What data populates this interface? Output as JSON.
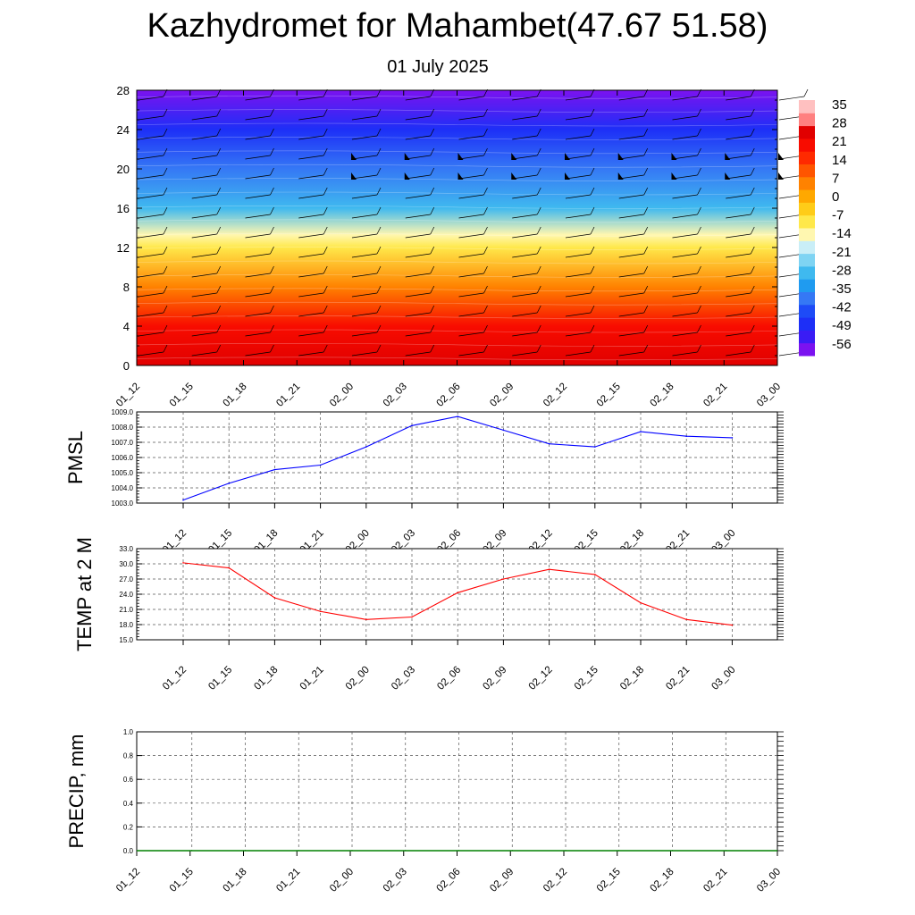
{
  "title": "Kazhydromet for Mahambet(47.67 51.58)",
  "subtitle": "01 July 2025",
  "chart_data": [
    {
      "type": "heatmap",
      "name": "cross-section",
      "x_ticks": [
        "01_12",
        "01_15",
        "01_18",
        "01_21",
        "02_00",
        "02_03",
        "02_06",
        "02_09",
        "02_12",
        "02_15",
        "02_18",
        "02_21",
        "03_00"
      ],
      "y_ticks": [
        0,
        4,
        8,
        12,
        16,
        20,
        24,
        28
      ],
      "ylim": [
        0,
        28
      ],
      "colorbar_labels": [
        "35",
        "28",
        "21",
        "14",
        "7",
        "0",
        "-7",
        "-14",
        "-21",
        "-28",
        "-35",
        "-42",
        "-49",
        "-56"
      ],
      "colorbar_range": [
        -63,
        42
      ],
      "colorscale": [
        "#7b12f0",
        "#3a1cf5",
        "#1d2ff7",
        "#1e4bf7",
        "#3578f5",
        "#1f9bf0",
        "#3fb9ef",
        "#7fd4f3",
        "#c9eef7",
        "#fff7b0",
        "#ffe84a",
        "#ffcc18",
        "#ffa800",
        "#ff8200",
        "#ff5500",
        "#ff2a00",
        "#f80c00",
        "#e10000",
        "#ff8080",
        "#ffc0c0"
      ],
      "temperature_profile": [
        {
          "level": 0,
          "value": 30
        },
        {
          "level": 4,
          "value": 21
        },
        {
          "level": 8,
          "value": 10
        },
        {
          "level": 12,
          "value": -7
        },
        {
          "level": 13.3,
          "value": -12
        },
        {
          "level": 16,
          "value": -28
        },
        {
          "level": 20,
          "value": -42
        },
        {
          "level": 24,
          "value": -52
        },
        {
          "level": 28,
          "value": -60
        }
      ],
      "wind_barb_levels": [
        1,
        3,
        5,
        7,
        9,
        11,
        13,
        15,
        17,
        19,
        21,
        23,
        25,
        27
      ]
    },
    {
      "type": "line",
      "name": "pmsl",
      "ylabel": "PMSL",
      "x": [
        "01_12",
        "01_15",
        "01_18",
        "01_21",
        "02_00",
        "02_03",
        "02_06",
        "02_09",
        "02_12",
        "02_15",
        "02_18",
        "02_21",
        "03_00"
      ],
      "y_ticks": [
        "1003.0",
        "1004.0",
        "1005.0",
        "1006.0",
        "1007.0",
        "1008.0",
        "1009.0"
      ],
      "ylim": [
        1003,
        1009
      ],
      "color": "#0000ff",
      "series": [
        {
          "values": [
            1003.2,
            1004.3,
            1005.2,
            1005.5,
            1006.7,
            1008.1,
            1008.7,
            1007.8,
            1006.9,
            1006.7,
            1007.7,
            1007.4,
            1007.3
          ]
        }
      ]
    },
    {
      "type": "line",
      "name": "temp2m",
      "ylabel": "TEMP at 2 M",
      "x": [
        "01_12",
        "01_15",
        "01_18",
        "01_21",
        "02_00",
        "02_03",
        "02_06",
        "02_09",
        "02_12",
        "02_15",
        "02_18",
        "02_21",
        "03_00"
      ],
      "y_ticks": [
        "15.0",
        "18.0",
        "21.0",
        "24.0",
        "27.0",
        "30.0",
        "33.0"
      ],
      "ylim": [
        15,
        33
      ],
      "color": "#ff0000",
      "series": [
        {
          "values": [
            30.2,
            29.2,
            23.3,
            20.6,
            19.0,
            19.5,
            24.3,
            27.0,
            28.9,
            27.9,
            22.3,
            19.0,
            17.9
          ]
        }
      ]
    },
    {
      "type": "line",
      "name": "precip",
      "ylabel": "PRECIP, mm",
      "x": [
        "01_12",
        "01_15",
        "01_18",
        "01_21",
        "02_00",
        "02_03",
        "02_06",
        "02_09",
        "02_12",
        "02_15",
        "02_18",
        "02_21",
        "03_00"
      ],
      "y_ticks": [
        "0.0",
        "0.2",
        "0.4",
        "0.6",
        "0.8",
        "1.0"
      ],
      "ylim": [
        0,
        1
      ],
      "color": "#008000",
      "series": [
        {
          "values": [
            0,
            0,
            0,
            0,
            0,
            0,
            0,
            0,
            0,
            0,
            0,
            0,
            0
          ]
        }
      ]
    }
  ]
}
